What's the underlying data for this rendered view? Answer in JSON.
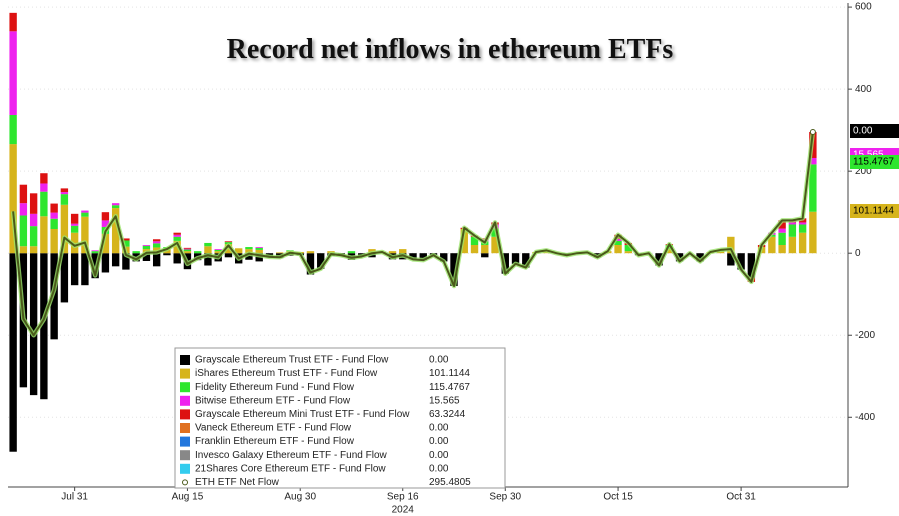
{
  "chart_data": {
    "type": "bar",
    "title": "Record net inflows in ethereum ETFs",
    "x_label": "2024",
    "categories": [
      null,
      null,
      null,
      null,
      null,
      null,
      "Jul 31",
      null,
      null,
      null,
      null,
      null,
      null,
      null,
      null,
      null,
      null,
      "Aug 15",
      null,
      null,
      null,
      null,
      null,
      null,
      null,
      null,
      null,
      null,
      "Aug 30",
      null,
      null,
      null,
      null,
      null,
      null,
      null,
      null,
      null,
      "Sep 16",
      null,
      null,
      null,
      null,
      null,
      null,
      null,
      null,
      null,
      "Sep 30",
      null,
      null,
      null,
      null,
      null,
      null,
      null,
      null,
      null,
      null,
      "Oct 15",
      null,
      null,
      null,
      null,
      null,
      null,
      null,
      null,
      null,
      null,
      null,
      "Oct 31",
      null,
      null,
      null,
      null,
      null,
      null,
      null
    ],
    "ylim": [
      -570,
      610
    ],
    "yticks": [
      -400,
      -200,
      0,
      200,
      400,
      600
    ],
    "grid": true,
    "series": [
      {
        "name": "Grayscale Ethereum Trust ETF - Fund Flow",
        "color": "#000000",
        "legend_value": "0.00",
        "values": [
          -484,
          -327,
          -346,
          -356,
          -210,
          -120,
          -78,
          -78,
          -61,
          -47,
          -32,
          -40,
          -20,
          -19,
          -32,
          -5,
          -25,
          -39,
          -17,
          -30,
          -20,
          -10,
          -25,
          -16,
          -20,
          -9,
          -12,
          -6,
          -5,
          -52,
          -38,
          -7,
          -5,
          -16,
          -8,
          -10,
          0,
          -15,
          -15,
          -15,
          -17,
          -5,
          -20,
          -80,
          0,
          0,
          -10,
          0,
          -50,
          -26,
          -35,
          0,
          0,
          0,
          -5,
          0,
          0,
          -10,
          0,
          0,
          0,
          -5,
          0,
          -30,
          0,
          -20,
          0,
          -20,
          0,
          0,
          -30,
          -40,
          -60,
          0,
          0,
          0,
          0,
          0,
          0
        ]
      },
      {
        "name": "iShares Ethereum Trust ETF - Fund Flow",
        "color": "#d6b41c",
        "legend_value": "101.1144",
        "values": [
          266,
          17,
          17,
          90,
          59,
          118,
          50,
          89,
          0,
          47,
          110,
          16,
          0,
          10,
          14,
          10,
          30,
          5,
          0,
          17,
          5,
          22,
          12,
          10,
          8,
          0,
          2,
          5,
          3,
          5,
          0,
          5,
          0,
          0,
          0,
          10,
          0,
          5,
          10,
          0,
          0,
          0,
          0,
          0,
          59,
          20,
          20,
          40,
          0,
          0,
          0,
          3,
          5,
          0,
          0,
          0,
          0,
          0,
          5,
          20,
          5,
          0,
          0,
          0,
          10,
          0,
          0,
          0,
          3,
          5,
          40,
          0,
          0,
          15,
          40,
          20,
          40,
          50,
          101.1144
        ]
      },
      {
        "name": "Fidelity Ethereum Fund - Fund Flow",
        "color": "#2ee62e",
        "legend_value": "115.4767",
        "values": [
          71,
          75,
          49,
          60,
          25,
          26,
          17,
          10,
          5,
          17,
          7,
          15,
          5,
          8,
          10,
          5,
          10,
          4,
          5,
          8,
          3,
          5,
          0,
          5,
          5,
          0,
          0,
          2,
          0,
          0,
          0,
          0,
          0,
          5,
          0,
          0,
          0,
          0,
          0,
          0,
          0,
          0,
          0,
          0,
          0,
          20,
          9,
          20,
          0,
          0,
          0,
          0,
          0,
          0,
          0,
          0,
          2,
          0,
          0,
          10,
          15,
          0,
          0,
          0,
          10,
          0,
          0,
          0,
          0,
          3,
          0,
          0,
          0,
          0,
          5,
          30,
          30,
          20,
          115.4767
        ]
      },
      {
        "name": "Bitwise Ethereum ETF - Fund Flow",
        "color": "#ee22ee",
        "legend_value": "15.565",
        "values": [
          204,
          30,
          30,
          20,
          15,
          5,
          5,
          5,
          2,
          16,
          5,
          0,
          0,
          2,
          5,
          0,
          5,
          2,
          0,
          0,
          2,
          0,
          0,
          0,
          2,
          0,
          0,
          0,
          0,
          0,
          0,
          0,
          0,
          0,
          0,
          0,
          0,
          0,
          0,
          0,
          0,
          0,
          0,
          0,
          0,
          0,
          5,
          10,
          0,
          0,
          0,
          0,
          0,
          0,
          0,
          0,
          0,
          0,
          0,
          5,
          0,
          0,
          0,
          0,
          0,
          0,
          0,
          0,
          0,
          0,
          0,
          0,
          0,
          0,
          5,
          10,
          5,
          5,
          15.565
        ]
      },
      {
        "name": "Grayscale Ethereum Mini Trust ETF - Fund Flow",
        "color": "#dd1111",
        "legend_value": "63.3244",
        "values": [
          45,
          45,
          50,
          25,
          22,
          9,
          24,
          0,
          0,
          20,
          0,
          5,
          0,
          0,
          5,
          0,
          5,
          2,
          0,
          0,
          0,
          2,
          0,
          0,
          0,
          0,
          0,
          0,
          0,
          0,
          0,
          0,
          0,
          0,
          0,
          0,
          3,
          0,
          0,
          0,
          0,
          0,
          0,
          0,
          3,
          3,
          2,
          5,
          0,
          0,
          0,
          0,
          2,
          0,
          0,
          0,
          0,
          0,
          0,
          10,
          5,
          0,
          0,
          0,
          2,
          0,
          0,
          0,
          0,
          0,
          0,
          0,
          -10,
          5,
          0,
          20,
          5,
          10,
          63.3244
        ]
      },
      {
        "name": "Vaneck Ethereum ETF - Fund Flow",
        "color": "#e07020",
        "legend_value": "0.00",
        "values": [
          0,
          0,
          0,
          0,
          0,
          0,
          0,
          0,
          0,
          0,
          0,
          0,
          0,
          0,
          0,
          0,
          0,
          0,
          0,
          0,
          0,
          0,
          0,
          0,
          0,
          0,
          0,
          0,
          0,
          0,
          0,
          0,
          0,
          0,
          0,
          0,
          0,
          0,
          0,
          0,
          0,
          0,
          0,
          0,
          0,
          0,
          0,
          0,
          0,
          0,
          0,
          0,
          0,
          0,
          0,
          0,
          0,
          0,
          0,
          0,
          0,
          0,
          0,
          0,
          0,
          0,
          0,
          0,
          0,
          0,
          0,
          0,
          0,
          0,
          0,
          0,
          0,
          0,
          0
        ]
      },
      {
        "name": "Franklin Ethereum ETF - Fund Flow",
        "color": "#2277dd",
        "legend_value": "0.00",
        "values": [
          0,
          0,
          0,
          0,
          0,
          0,
          0,
          0,
          0,
          0,
          0,
          0,
          0,
          0,
          0,
          0,
          0,
          0,
          0,
          0,
          0,
          0,
          0,
          0,
          0,
          0,
          0,
          0,
          0,
          0,
          0,
          0,
          0,
          0,
          0,
          0,
          0,
          0,
          0,
          0,
          0,
          0,
          0,
          0,
          0,
          0,
          0,
          0,
          0,
          0,
          0,
          0,
          0,
          0,
          0,
          0,
          0,
          0,
          0,
          0,
          0,
          0,
          0,
          0,
          0,
          0,
          0,
          0,
          0,
          0,
          0,
          0,
          0,
          0,
          0,
          0,
          0,
          0,
          0
        ]
      },
      {
        "name": "Invesco Galaxy Ethereum ETF - Fund Flow",
        "color": "#888888",
        "legend_value": "0.00",
        "values": [
          0,
          0,
          0,
          0,
          0,
          0,
          0,
          0,
          0,
          0,
          0,
          0,
          0,
          0,
          0,
          0,
          0,
          0,
          0,
          0,
          0,
          0,
          0,
          0,
          0,
          0,
          0,
          0,
          0,
          0,
          0,
          0,
          0,
          0,
          0,
          0,
          0,
          0,
          0,
          0,
          0,
          0,
          0,
          0,
          0,
          0,
          0,
          0,
          0,
          0,
          0,
          0,
          0,
          0,
          0,
          0,
          0,
          0,
          0,
          0,
          0,
          0,
          0,
          0,
          0,
          0,
          0,
          0,
          0,
          0,
          0,
          0,
          0,
          0,
          0,
          0,
          0,
          0,
          0
        ]
      },
      {
        "name": "21Shares Core Ethereum ETF - Fund Flow",
        "color": "#33ccee",
        "legend_value": "0.00",
        "values": [
          0,
          0,
          0,
          0,
          0,
          0,
          0,
          0,
          0,
          0,
          0,
          0,
          0,
          0,
          0,
          0,
          0,
          0,
          0,
          0,
          0,
          0,
          0,
          0,
          0,
          0,
          0,
          0,
          0,
          0,
          0,
          0,
          0,
          0,
          0,
          0,
          0,
          0,
          0,
          0,
          0,
          0,
          0,
          0,
          0,
          0,
          0,
          0,
          0,
          0,
          0,
          0,
          0,
          0,
          0,
          0,
          0,
          0,
          0,
          0,
          0,
          0,
          0,
          0,
          0,
          0,
          0,
          0,
          0,
          0,
          0,
          0,
          0,
          0,
          0,
          0,
          0,
          0,
          0
        ]
      },
      {
        "name": "ETH ETF Net Flow",
        "type": "line",
        "color": "#4a5a1a",
        "legend_value": "295.4805",
        "values": [
          102,
          -160,
          -200,
          -161,
          -89,
          38,
          18,
          26,
          -54,
          53,
          90,
          -4,
          -15,
          1,
          2,
          10,
          25,
          -26,
          -12,
          -5,
          -10,
          19,
          -13,
          -1,
          -5,
          -9,
          -10,
          1,
          -2,
          -47,
          -38,
          -2,
          -5,
          -11,
          -8,
          0,
          3,
          -10,
          -5,
          -15,
          -17,
          -5,
          -20,
          -80,
          62,
          43,
          26,
          75,
          -50,
          -26,
          -35,
          3,
          7,
          0,
          -5,
          0,
          2,
          -10,
          5,
          45,
          25,
          -5,
          0,
          -30,
          22,
          -20,
          0,
          -20,
          3,
          8,
          10,
          -40,
          -70,
          20,
          50,
          80,
          80,
          85,
          295.4805
        ]
      }
    ]
  }
}
